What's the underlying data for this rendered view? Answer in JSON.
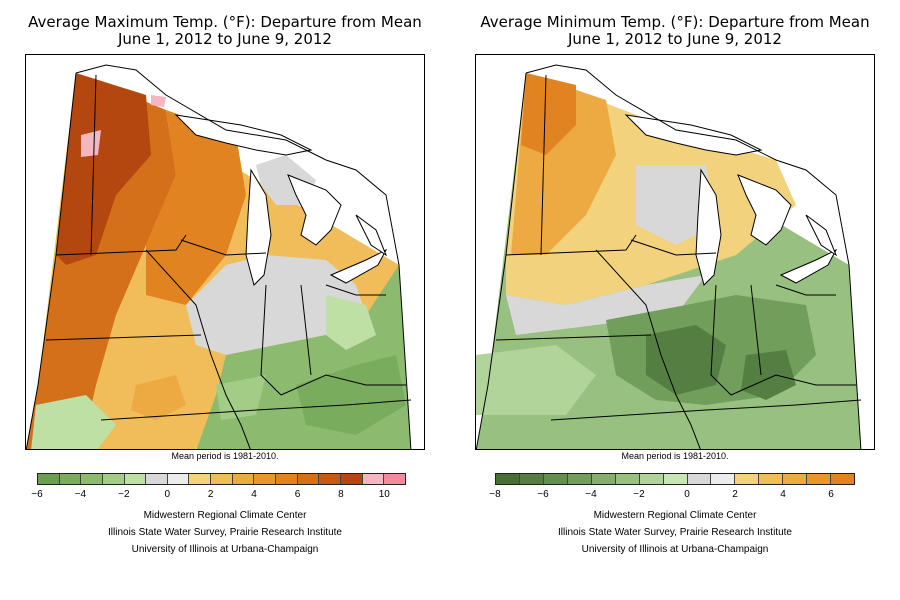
{
  "maps": [
    {
      "id": "max",
      "title_line1": "Average Maximum Temp. (°F): Departure from Mean",
      "title_line2": "June 1, 2012 to June 9, 2012",
      "mean_period": "Mean period is 1981-2010.",
      "legend": {
        "min": -6,
        "max": 11,
        "step": 1,
        "colors": [
          "#6a9e50",
          "#7aac5e",
          "#8cbb70",
          "#a3cd86",
          "#bfe0a4",
          "#d8d8d8",
          "#ececec",
          "#f2d27c",
          "#f0bd5a",
          "#eeaa42",
          "#e8972e",
          "#e08320",
          "#d4701a",
          "#c65a14",
          "#b44610",
          "#f4b6c0",
          "#f28c9c"
        ],
        "tick_labels": [
          "−6",
          "−4",
          "−2",
          "0",
          "2",
          "4",
          "6",
          "8",
          "10"
        ]
      }
    },
    {
      "id": "min",
      "title_line1": "Average Minimum Temp. (°F): Departure from Mean",
      "title_line2": "June 1, 2012 to June 9, 2012",
      "mean_period": "Mean period is 1981-2010.",
      "legend": {
        "min": -8,
        "max": 7,
        "step": 1,
        "colors": [
          "#466f34",
          "#557f42",
          "#628e4e",
          "#729e5c",
          "#84ae6c",
          "#98c080",
          "#b0d49a",
          "#c8e6b4",
          "#d8d8d8",
          "#ececec",
          "#f2d27c",
          "#f0bd5a",
          "#eeaa42",
          "#e8972e",
          "#e08320"
        ],
        "tick_labels": [
          "−8",
          "−6",
          "−4",
          "−2",
          "0",
          "2",
          "4",
          "6"
        ]
      }
    }
  ],
  "credits": {
    "line1": "Midwestern Regional Climate Center",
    "line2": "Illinois State Water Survey, Prairie Research Institute",
    "line3": "University of Illinois at Urbana-Champaign"
  }
}
